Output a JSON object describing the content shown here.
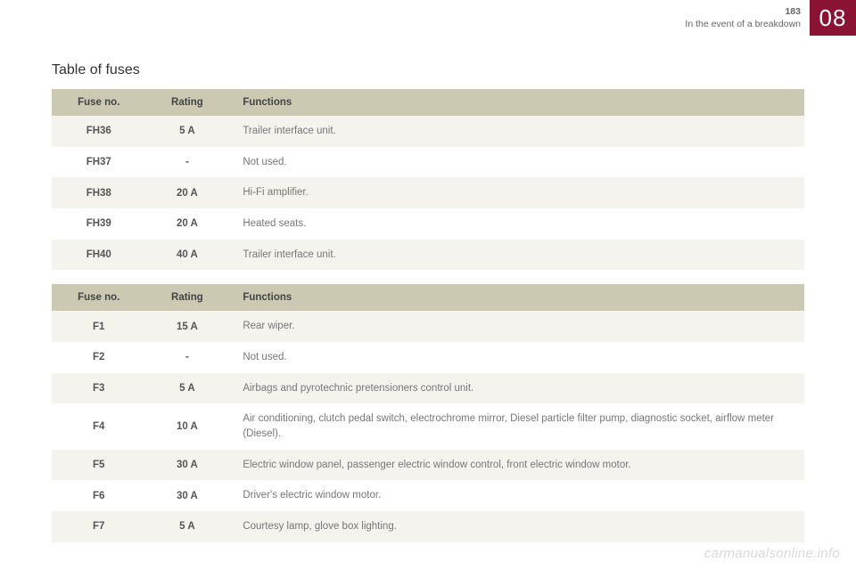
{
  "header": {
    "page_number": "183",
    "section": "In the event of a breakdown",
    "chapter": "08",
    "badge_bg": "#8a1233"
  },
  "title": "Table of fuses",
  "colors": {
    "header_row_bg": "#ccc9b3",
    "row_odd_bg": "#f4f3ee",
    "row_even_bg": "#ffffff",
    "text_muted": "#777777",
    "text_bold": "#555555"
  },
  "columns": [
    "Fuse no.",
    "Rating",
    "Functions"
  ],
  "table1": {
    "rows": [
      {
        "no": "FH36",
        "rating": "5 A",
        "fn": "Trailer interface unit."
      },
      {
        "no": "FH37",
        "rating": "-",
        "fn": "Not used."
      },
      {
        "no": "FH38",
        "rating": "20 A",
        "fn": "Hi-Fi amplifier."
      },
      {
        "no": "FH39",
        "rating": "20 A",
        "fn": "Heated seats."
      },
      {
        "no": "FH40",
        "rating": "40 A",
        "fn": "Trailer interface unit."
      }
    ]
  },
  "table2": {
    "rows": [
      {
        "no": "F1",
        "rating": "15 A",
        "fn": "Rear wiper."
      },
      {
        "no": "F2",
        "rating": "-",
        "fn": "Not used."
      },
      {
        "no": "F3",
        "rating": "5 A",
        "fn": "Airbags and pyrotechnic pretensioners control unit."
      },
      {
        "no": "F4",
        "rating": "10 A",
        "fn": "Air conditioning, clutch pedal switch, electrochrome mirror, Diesel particle filter pump, diagnostic socket, airflow meter (Diesel)."
      },
      {
        "no": "F5",
        "rating": "30 A",
        "fn": "Electric window panel, passenger electric window control, front electric window motor."
      },
      {
        "no": "F6",
        "rating": "30 A",
        "fn": "Driver's electric window motor."
      },
      {
        "no": "F7",
        "rating": "5 A",
        "fn": "Courtesy lamp, glove box lighting."
      }
    ]
  },
  "watermark": "carmanualsonline.info"
}
